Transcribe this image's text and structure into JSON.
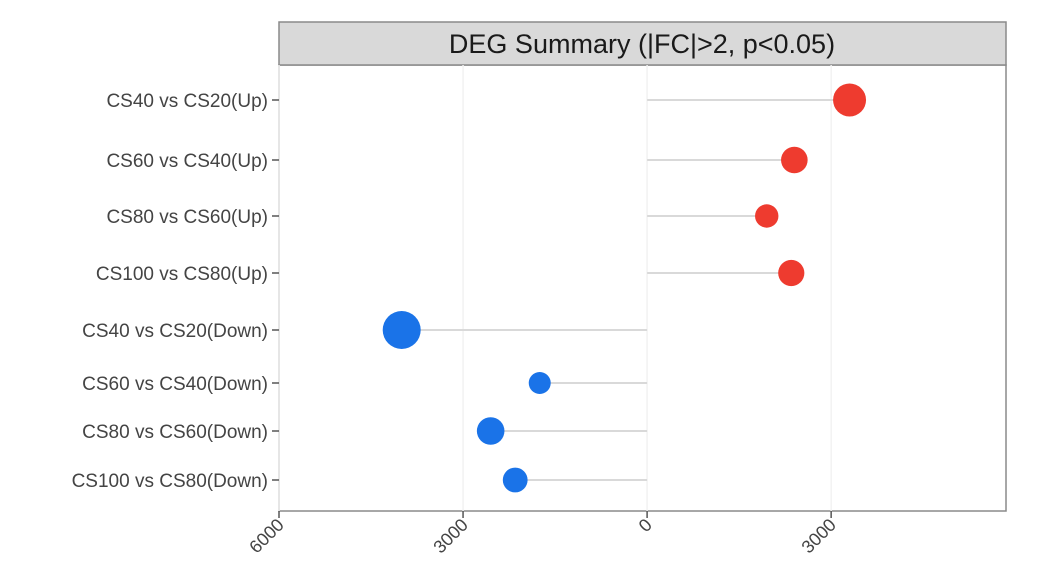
{
  "chart_data": {
    "type": "lollipop",
    "title": "DEG Summary (|FC|>2, p<0.05)",
    "categories": [
      "CS40 vs CS20(Up)",
      "CS60 vs CS40(Up)",
      "CS80 vs CS60(Up)",
      "CS100 vs CS80(Up)",
      "CS40 vs CS20(Down)",
      "CS60 vs CS40(Down)",
      "CS80 vs CS60(Down)",
      "CS100 vs CS80(Down)"
    ],
    "values": [
      3300,
      2400,
      1950,
      2350,
      4000,
      1750,
      2550,
      2150
    ],
    "direction": [
      "Up",
      "Up",
      "Up",
      "Up",
      "Down",
      "Down",
      "Down",
      "Down"
    ],
    "x_ticks": [
      "6000",
      "3000",
      "0",
      "3000"
    ],
    "x_axis": "mirrored: Down to the left of 0, Up to the right of 0",
    "xlim": [
      -6000,
      5850
    ],
    "xlabel": "",
    "ylabel": "",
    "grid": true,
    "legend": "none",
    "colors": {
      "Up": "#ee3b2f",
      "Down": "#1a73e8",
      "stem": "#d9d9d9",
      "grid": "#f2f2f2"
    }
  }
}
